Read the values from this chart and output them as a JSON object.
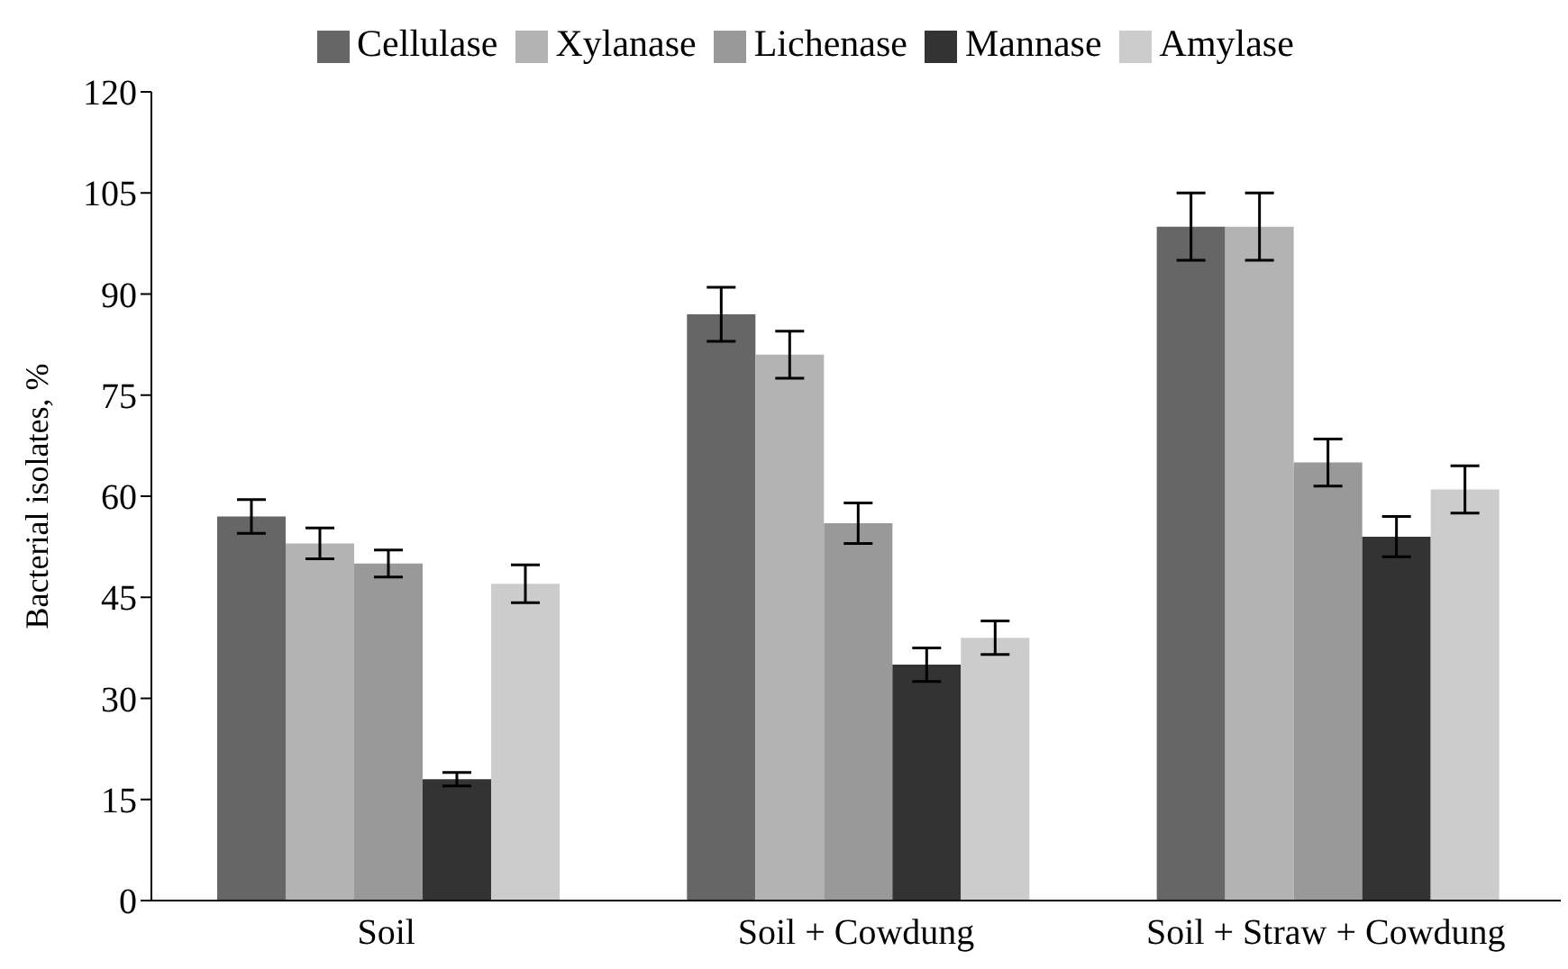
{
  "chart_data": {
    "type": "bar",
    "ylabel": "Bacterial isolates, %",
    "categories": [
      "Soil",
      "Soil + Cowdung",
      "Soil + Straw + Cowdung"
    ],
    "series": [
      {
        "name": "Cellulase",
        "color": "#666666",
        "values": [
          57,
          87,
          100
        ],
        "errors": [
          2.5,
          4,
          5
        ]
      },
      {
        "name": "Xylanase",
        "color": "#b3b3b3",
        "values": [
          53,
          81,
          100
        ],
        "errors": [
          2.3,
          3.5,
          5
        ]
      },
      {
        "name": "Lichenase",
        "color": "#999999",
        "values": [
          50,
          56,
          65
        ],
        "errors": [
          2,
          3,
          3.5
        ]
      },
      {
        "name": "Mannase",
        "color": "#333333",
        "values": [
          18,
          35,
          54
        ],
        "errors": [
          1,
          2.5,
          3
        ]
      },
      {
        "name": "Amylase",
        "color": "#cccccc",
        "values": [
          47,
          39,
          61
        ],
        "errors": [
          2.8,
          2.5,
          3.5
        ]
      }
    ],
    "ylim": [
      0,
      120
    ],
    "yticks": [
      0,
      15,
      30,
      45,
      60,
      75,
      90,
      105,
      120
    ],
    "legend": "top"
  }
}
